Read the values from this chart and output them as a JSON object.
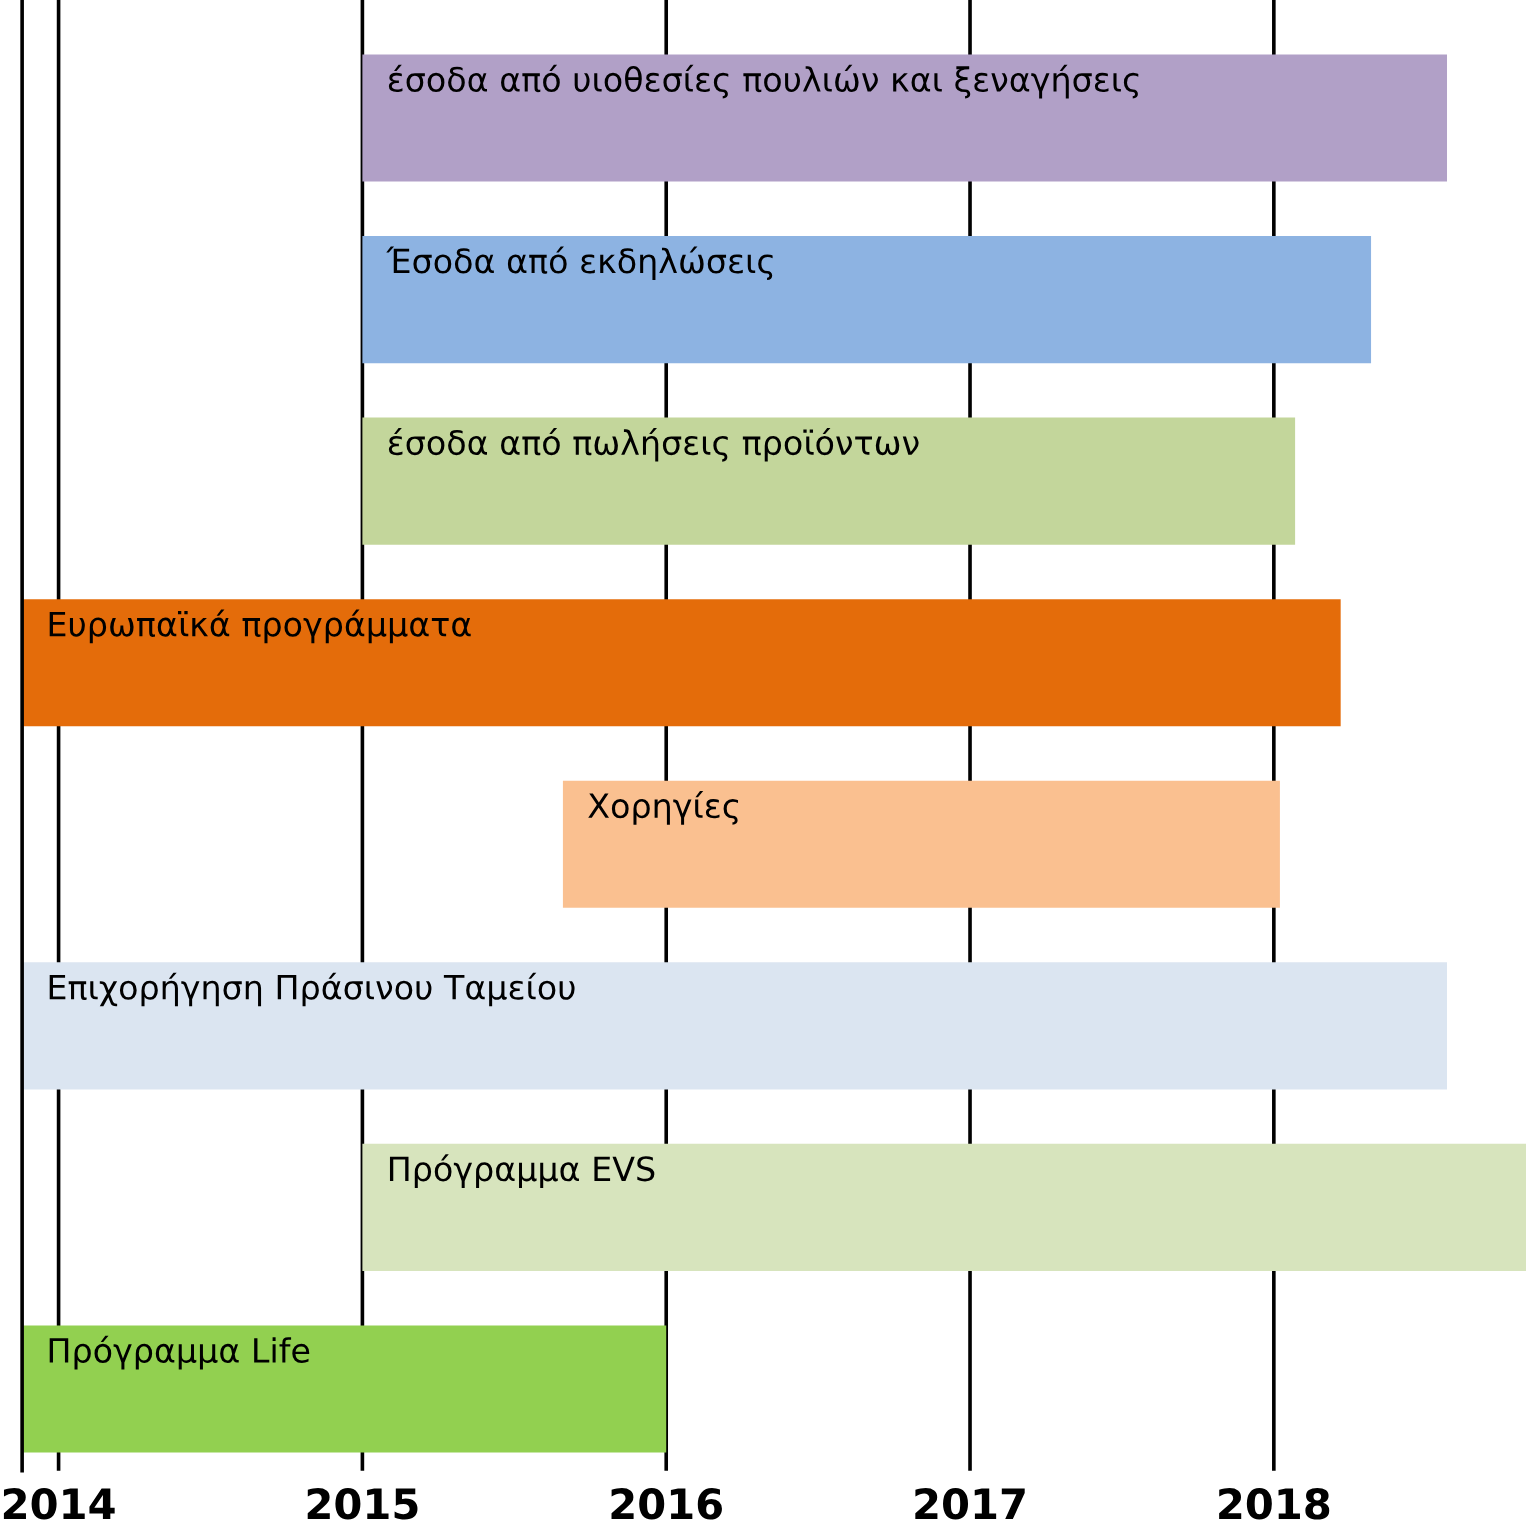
{
  "chart_data": {
    "type": "bar",
    "orientation": "horizontal",
    "categories": [
      "έσοδα από υιοθεσίες πουλιών και ξεναγήσεις",
      "Έσοδα από εκδηλώσεις",
      "έσοδα από πωλήσεις προϊόντων",
      "Ευρωπαϊκά προγράμματα",
      "Χορηγίες",
      "Επιχορήγηση Πράσινου Ταμείου",
      "Πρόγραμμα EVS",
      "Πρόγραμμα Life"
    ],
    "base": [
      2015,
      2015,
      2015,
      2013.88,
      2015.66,
      2013.88,
      2015,
      2013.88
    ],
    "values": [
      3.57,
      3.32,
      3.07,
      4.34,
      2.36,
      4.69,
      3.83,
      2.12
    ],
    "colors": [
      "#b1a0c7",
      "#8db3e2",
      "#c3d69b",
      "#e46c0a",
      "#fac090",
      "#dbe5f1",
      "#d7e4bd",
      "#92d050"
    ],
    "xlim": [
      2013.88,
      2018.83
    ],
    "xticks": [
      2014,
      2015,
      2016,
      2017,
      2018
    ],
    "grid": "x",
    "tick_labels": "x"
  }
}
